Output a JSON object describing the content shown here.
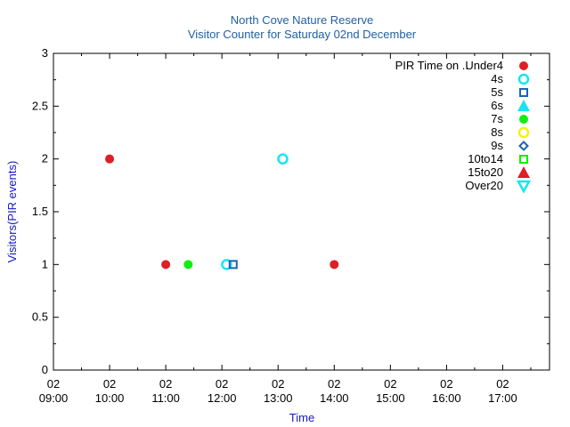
{
  "chart_data": {
    "type": "scatter",
    "title": "North Cove Nature Reserve",
    "subtitle": "Visitor Counter for Saturday 02nd December",
    "xlabel": "Time",
    "ylabel": "Visitors(PIR events)",
    "xlim": [
      "09:00",
      "17:50"
    ],
    "ylim": [
      0,
      3
    ],
    "x_ticks": [
      {
        "top": "02",
        "bottom": "09:00",
        "value": "09:00"
      },
      {
        "top": "02",
        "bottom": "10:00",
        "value": "10:00"
      },
      {
        "top": "02",
        "bottom": "11:00",
        "value": "11:00"
      },
      {
        "top": "02",
        "bottom": "12:00",
        "value": "12:00"
      },
      {
        "top": "02",
        "bottom": "13:00",
        "value": "13:00"
      },
      {
        "top": "02",
        "bottom": "14:00",
        "value": "14:00"
      },
      {
        "top": "02",
        "bottom": "15:00",
        "value": "15:00"
      },
      {
        "top": "02",
        "bottom": "16:00",
        "value": "16:00"
      },
      {
        "top": "02",
        "bottom": "17:00",
        "value": "17:00"
      }
    ],
    "y_ticks": [
      "0",
      "0.5",
      "1",
      "1.5",
      "2",
      "2.5",
      "3"
    ],
    "grid": false,
    "legend_position": "top-right",
    "legend_title": "PIR Time on ..",
    "series": [
      {
        "name": "Under4",
        "color": "#dd1f26",
        "marker": "filled-circle",
        "points": [
          {
            "x": "10:00",
            "y": 2
          },
          {
            "x": "11:00",
            "y": 1
          },
          {
            "x": "14:00",
            "y": 1
          }
        ]
      },
      {
        "name": "4s",
        "color": "#14e6f2",
        "marker": "open-circle",
        "points": [
          {
            "x": "12:05",
            "y": 1
          },
          {
            "x": "13:05",
            "y": 2
          }
        ]
      },
      {
        "name": "5s",
        "color": "#1d63b2",
        "marker": "open-square",
        "points": [
          {
            "x": "12:12",
            "y": 1
          }
        ]
      },
      {
        "name": "6s",
        "color": "#14e6f2",
        "marker": "filled-triangle-up",
        "points": []
      },
      {
        "name": "7s",
        "color": "#11ee11",
        "marker": "filled-circle",
        "points": [
          {
            "x": "11:24",
            "y": 1
          }
        ]
      },
      {
        "name": "8s",
        "color": "#f2f20f",
        "marker": "open-circle",
        "points": []
      },
      {
        "name": "9s",
        "color": "#1d63b2",
        "marker": "open-diamond",
        "points": []
      },
      {
        "name": "10to14",
        "color": "#11ee11",
        "marker": "open-square",
        "points": []
      },
      {
        "name": "15to20",
        "color": "#dd1f26",
        "marker": "filled-triangle-up",
        "points": []
      },
      {
        "name": "Over20",
        "color": "#14e6f2",
        "marker": "open-triangle-down",
        "points": []
      }
    ]
  }
}
